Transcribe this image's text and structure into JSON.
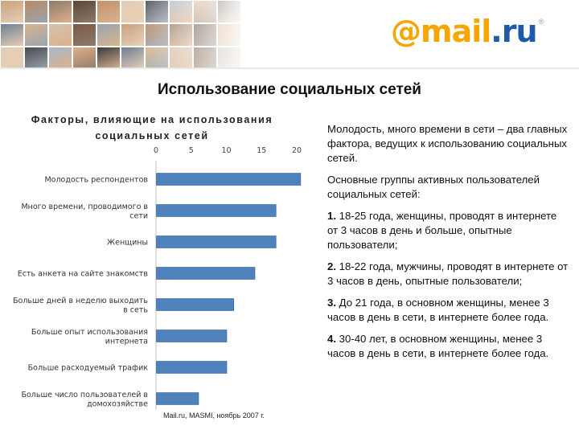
{
  "header": {
    "logo_text": "@mail.ru",
    "logo_reg": "®",
    "colors": {
      "logo_primary": "#f7a600",
      "logo_secondary": "#1e5aa8"
    },
    "photo_strip_icon": "people-photo-collage"
  },
  "slide": {
    "title": "Использование социальных сетей"
  },
  "chart_data": {
    "type": "bar",
    "orientation": "horizontal",
    "title": "Факторы, влияющие на использования социальных сетей",
    "title_lines": [
      "Факторы, влияющие на использования",
      "социальных сетей"
    ],
    "categories": [
      [
        "Молодость респондентов"
      ],
      [
        "Много времени, проводимого в",
        "сети"
      ],
      [
        "Женщины"
      ],
      [
        "Есть анкета на сайте знакомств"
      ],
      [
        "Больше дней в неделю выходить",
        "в сеть"
      ],
      [
        "Больше опыт использования",
        "интернета"
      ],
      [
        "Больше расходуемый трафик"
      ],
      [
        "Больше число пользователей в",
        "домохозяйстве"
      ]
    ],
    "values": [
      20.5,
      17,
      17,
      14,
      11,
      10,
      10,
      6
    ],
    "xlim": [
      0,
      20
    ],
    "xticks": [
      0,
      5,
      10,
      15,
      20
    ],
    "tick_labels": [
      "0",
      "5",
      "10",
      "15",
      "20"
    ],
    "xlabel": "",
    "ylabel": "",
    "grid": false,
    "legend": "none",
    "bar_color": "#4f81bd",
    "bar_edge_color": "#3a6296"
  },
  "source_note": "Mail.ru, MASMI, ноябрь 2007 г.",
  "right_text": {
    "p1": "Молодость, много времени в сети – два главных фактора, ведущих к использованию социальных сетей.",
    "p2": "Основные группы активных пользователей социальных сетей:",
    "items": [
      {
        "num": "1.",
        "text": " 18-25 года, женщины,  проводят в интернете от 3 часов в день и больше, опытные пользователи;"
      },
      {
        "num": "2.",
        "text": " 18-22 года, мужчины, проводят в интернете от 3 часов в день, опытные пользователи;"
      },
      {
        "num": "3.",
        "text": " До 21 года, в основном женщины, менее 3 часов в день в сети, в интернете более года."
      },
      {
        "num": "4.",
        "text": " 30-40 лет, в основном женщины, менее 3 часов в день в сети, в интернете более года."
      }
    ]
  }
}
